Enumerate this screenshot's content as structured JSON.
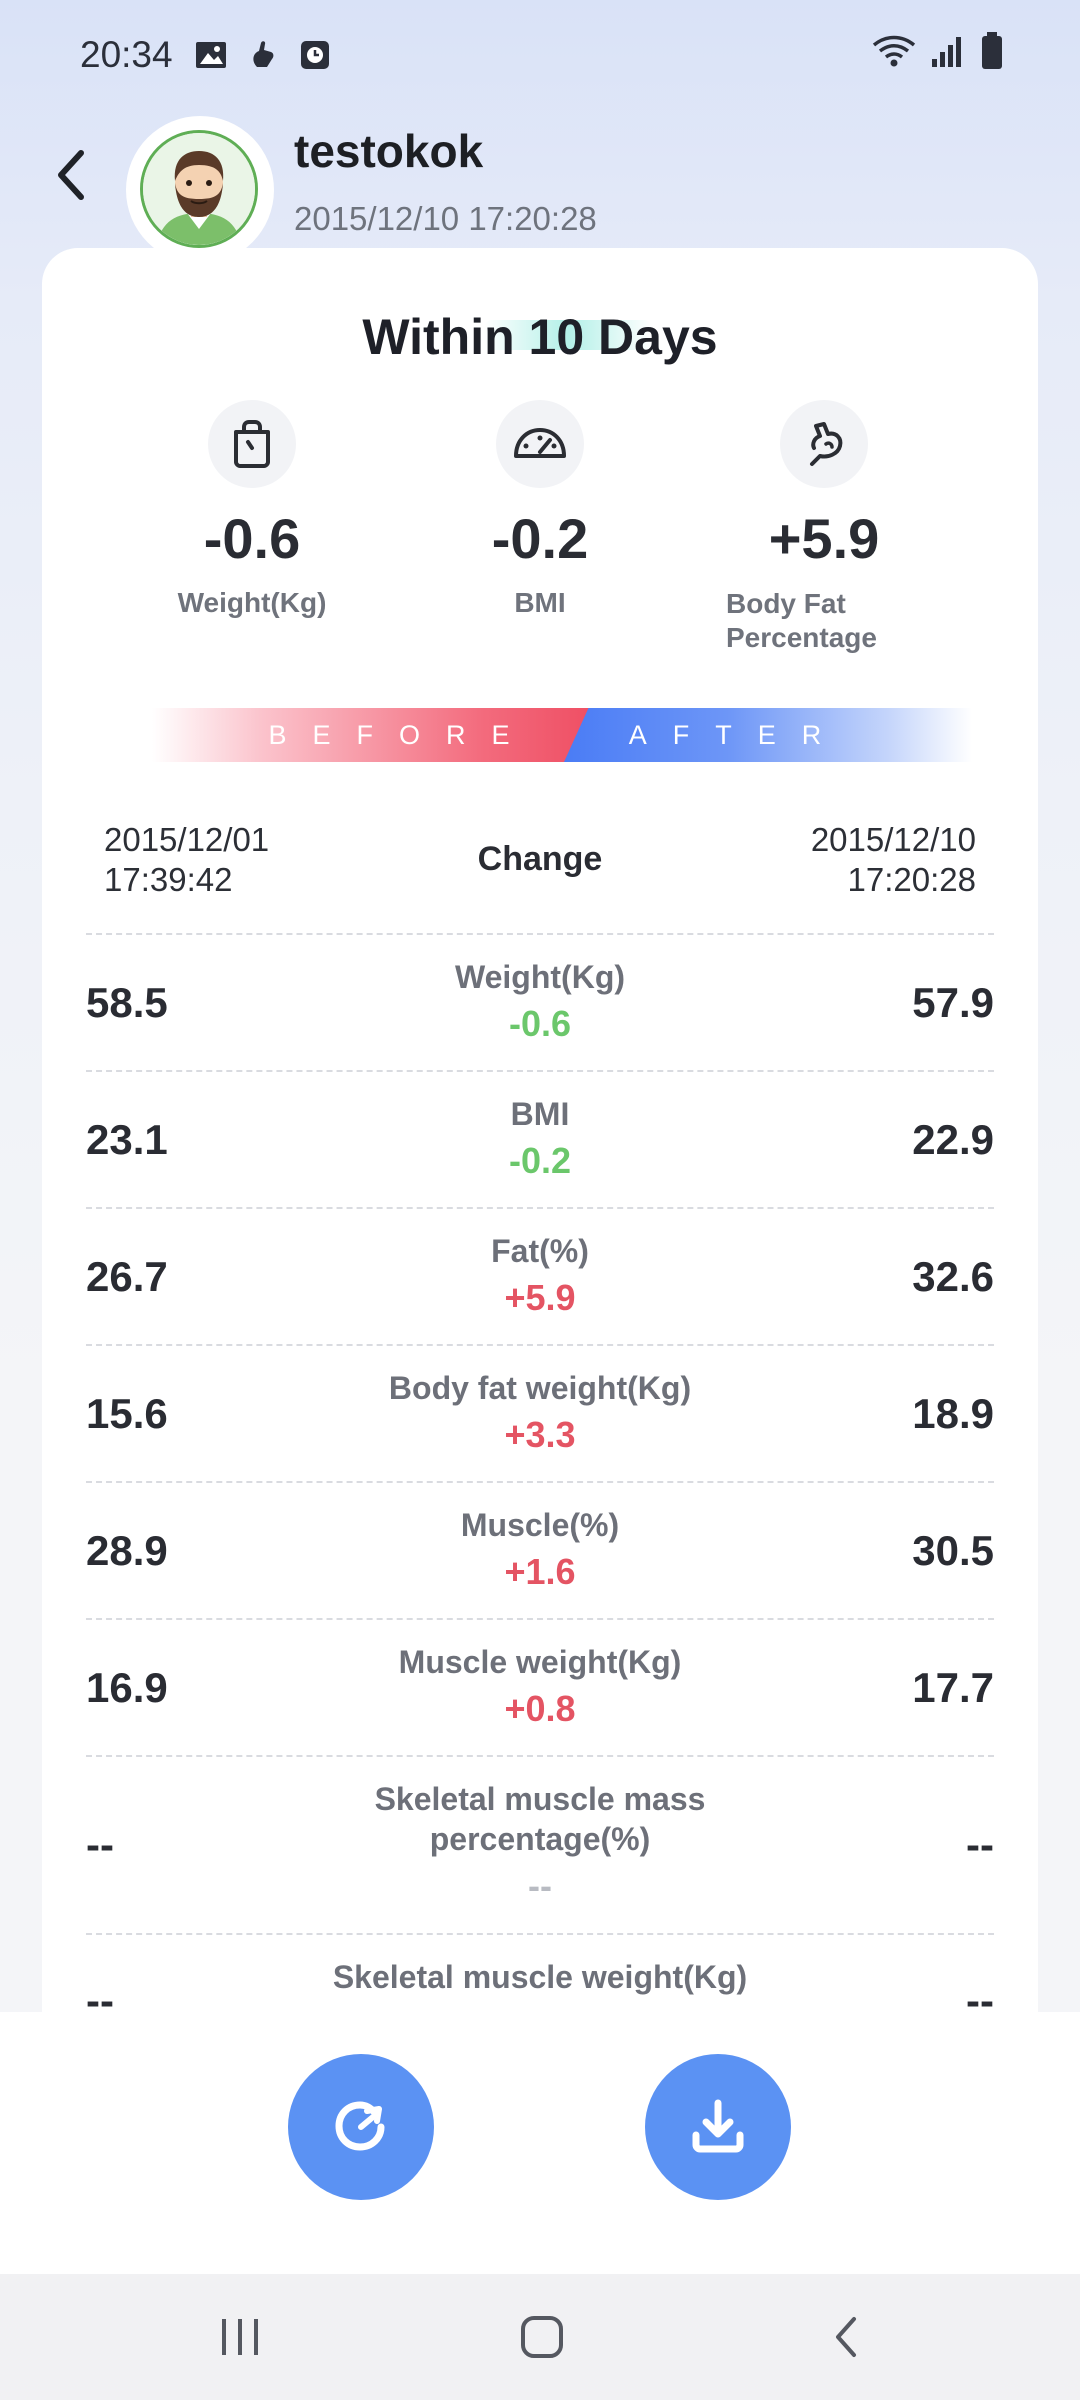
{
  "status_bar": {
    "time": "20:34",
    "left_icons": [
      "image-icon",
      "hand-icon",
      "clock-app-icon"
    ],
    "right_icons": [
      "wifi-icon",
      "signal-icon",
      "battery-icon"
    ]
  },
  "header": {
    "user_name": "testokok",
    "timestamp": "2015/12/10 17:20:28"
  },
  "card": {
    "title": "Within 10 Days",
    "summary": [
      {
        "icon": "weight-scale-icon",
        "value": "-0.6",
        "label": "Weight(Kg)"
      },
      {
        "icon": "gauge-icon",
        "value": "-0.2",
        "label": "BMI"
      },
      {
        "icon": "flexed-arm-icon",
        "value": "+5.9",
        "label": "Body Fat Percentage"
      }
    ],
    "banner": {
      "before": "BEFORE",
      "after": "AFTER"
    },
    "compare_header": {
      "left_date": "2015/12/01",
      "left_time": "17:39:42",
      "change": "Change",
      "right_date": "2015/12/10",
      "right_time": "17:20:28"
    },
    "rows": [
      {
        "before": "58.5",
        "metric": "Weight(Kg)",
        "delta": "-0.6",
        "trend": "down",
        "after": "57.9"
      },
      {
        "before": "23.1",
        "metric": "BMI",
        "delta": "-0.2",
        "trend": "down",
        "after": "22.9"
      },
      {
        "before": "26.7",
        "metric": "Fat(%)",
        "delta": "+5.9",
        "trend": "up",
        "after": "32.6"
      },
      {
        "before": "15.6",
        "metric": "Body fat weight(Kg)",
        "delta": "+3.3",
        "trend": "up",
        "after": "18.9"
      },
      {
        "before": "28.9",
        "metric": "Muscle(%)",
        "delta": "+1.6",
        "trend": "up",
        "after": "30.5"
      },
      {
        "before": "16.9",
        "metric": "Muscle weight(Kg)",
        "delta": "+0.8",
        "trend": "up",
        "after": "17.7"
      },
      {
        "before": "--",
        "metric": "Skeletal muscle mass percentage(%)",
        "delta": "--",
        "trend": "none",
        "after": "--"
      },
      {
        "before": "--",
        "metric": "Skeletal muscle weight(Kg)",
        "delta": "",
        "trend": "none",
        "after": "--"
      }
    ]
  },
  "actions": {
    "share_icon": "share-rotate-icon",
    "download_icon": "download-icon"
  },
  "nav": {
    "recent_icon": "recent-apps-icon",
    "home_icon": "home-icon",
    "back_icon": "back-icon"
  },
  "colors": {
    "accent_blue": "#5b92f3",
    "down_green": "#6bc76b",
    "up_red": "#e45463",
    "before_red": "#ef4f64",
    "after_blue": "#4a7cf5"
  }
}
